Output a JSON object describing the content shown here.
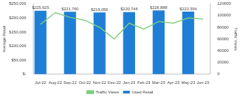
{
  "chart_data": {
    "type": "bar",
    "categories": [
      "Jul-22",
      "Aug-22",
      "Sep-22",
      "Oct-22",
      "Nov-22",
      "Dec-22",
      "Jan-23",
      "Feb-23",
      "Mar-23",
      "Apr-23",
      "May-23",
      "Jun-23"
    ],
    "series": [
      {
        "name": "Used Retail",
        "type": "bar",
        "color": "#1f7fd6",
        "values": [
          225625,
          null,
          221760,
          null,
          219056,
          null,
          220744,
          null,
          226888,
          null,
          222394,
          null
        ],
        "value_labels": [
          "$225,625",
          null,
          "$221,760",
          null,
          "$219,056",
          null,
          "$220,744",
          null,
          "$226,888",
          null,
          "$222,394",
          null
        ]
      },
      {
        "name": "Traffic Views",
        "type": "line",
        "color": "#7ccf7c",
        "axis": "y2",
        "marker": "none",
        "values": [
          85000,
          105000,
          97000,
          92000,
          80000,
          60000,
          87000,
          77000,
          90000,
          87000,
          96000,
          94000
        ]
      }
    ],
    "y_label": "Average Retail",
    "y2_label": "Traffic Views",
    "ylim": [
      0,
      250000
    ],
    "yticks": [
      {
        "value": 0,
        "label": "$-"
      },
      {
        "value": 50000,
        "label": "$50,000"
      },
      {
        "value": 100000,
        "label": "$100,000"
      },
      {
        "value": 150000,
        "label": "$150,000"
      },
      {
        "value": 200000,
        "label": "$200,000"
      },
      {
        "value": 250000,
        "label": "$250,000"
      }
    ],
    "y2lim": [
      0,
      120000
    ],
    "y2ticks": [
      0,
      20000,
      40000,
      60000,
      80000,
      100000,
      120000
    ],
    "legend": "bottom",
    "data_labels": true,
    "grid": false
  }
}
